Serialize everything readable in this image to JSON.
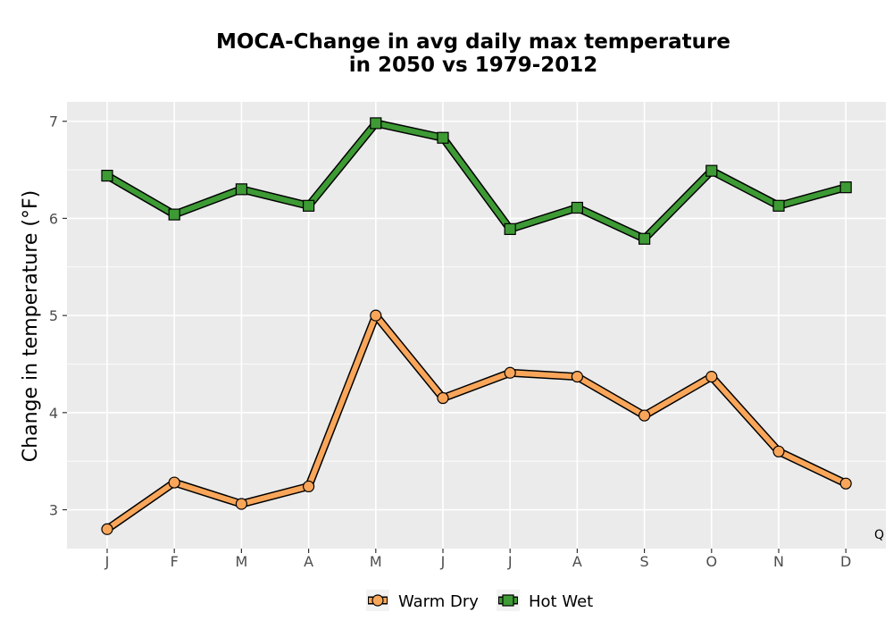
{
  "chart_data": {
    "type": "line",
    "title_lines": [
      "MOCA-Change in avg daily max temperature",
      "in 2050 vs 1979-2012"
    ],
    "xlabel": "",
    "ylabel": "Change in temperature (°F)",
    "categories": [
      "J",
      "F",
      "M",
      "A",
      "M",
      "J",
      "J",
      "A",
      "S",
      "O",
      "N",
      "D"
    ],
    "ylim": [
      2.6,
      7.2
    ],
    "yticks": [
      3,
      4,
      5,
      6,
      7
    ],
    "grid": true,
    "legend_position": "bottom",
    "annotation": "Q",
    "series": [
      {
        "name": "Warm Dry",
        "marker": "circle",
        "color": "#f9a65a",
        "values": [
          2.8,
          3.28,
          3.06,
          3.24,
          5.0,
          4.15,
          4.41,
          4.37,
          3.97,
          4.37,
          3.6,
          3.27
        ]
      },
      {
        "name": "Hot Wet",
        "marker": "square",
        "color": "#3d9a34",
        "values": [
          6.44,
          6.04,
          6.3,
          6.13,
          6.98,
          6.83,
          5.89,
          6.11,
          5.79,
          6.49,
          6.13,
          6.32
        ]
      }
    ],
    "colors": {
      "panel": "#ebebeb",
      "grid": "#ffffff",
      "outline": "#000000"
    }
  }
}
